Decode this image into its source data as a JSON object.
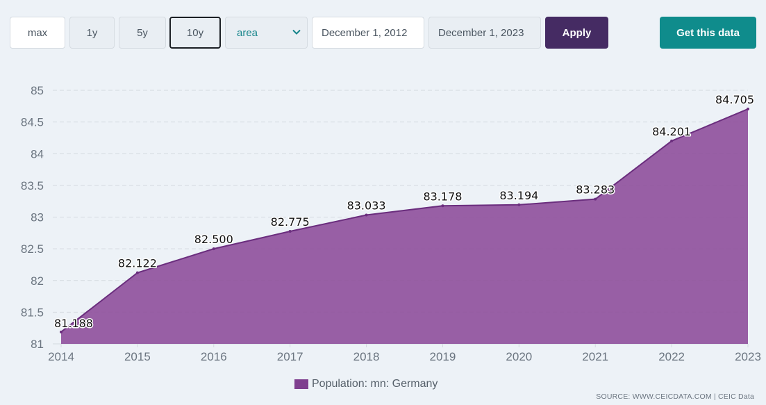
{
  "toolbar": {
    "range_buttons": [
      "max",
      "1y",
      "5y",
      "10y"
    ],
    "active_range": "10y",
    "chart_type_select": "area",
    "start_date": "December 1, 2012",
    "end_date": "December 1, 2023",
    "apply_label": "Apply",
    "get_data_label": "Get this data"
  },
  "colors": {
    "area_fill": "#8e4f9b",
    "area_line": "#6b2e7e",
    "apply_bg": "#452b63",
    "get_data_bg": "#0f8c8c"
  },
  "chart_data": {
    "type": "area",
    "x": [
      "2014",
      "2015",
      "2016",
      "2017",
      "2018",
      "2019",
      "2020",
      "2021",
      "2022",
      "2023"
    ],
    "series": [
      {
        "name": "Population: mn: Germany",
        "values": [
          81.188,
          82.122,
          82.5,
          82.775,
          83.033,
          83.178,
          83.194,
          83.283,
          84.201,
          84.705
        ]
      }
    ],
    "data_labels": [
      "81.188",
      "82.122",
      "82.500",
      "82.775",
      "83.033",
      "83.178",
      "83.194",
      "83.283",
      "84.201",
      "84.705"
    ],
    "yticks": [
      "81",
      "81.5",
      "82",
      "82.5",
      "83",
      "83.5",
      "84",
      "84.5",
      "85"
    ],
    "ylim": [
      81,
      85
    ],
    "grid": true,
    "legend_position": "bottom-center"
  },
  "legend_label": "Population: mn: Germany",
  "source_text": "SOURCE: WWW.CEICDATA.COM | CEIC Data"
}
